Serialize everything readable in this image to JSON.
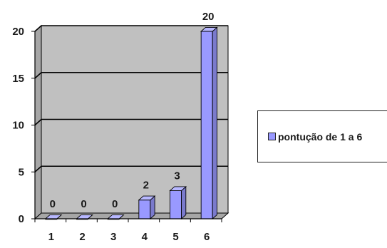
{
  "chart_data": {
    "type": "bar",
    "categories": [
      "1",
      "2",
      "3",
      "4",
      "5",
      "6"
    ],
    "series": [
      {
        "name": "pontução de 1 a 6",
        "values": [
          0,
          0,
          0,
          2,
          3,
          20
        ]
      }
    ],
    "data_labels": [
      "0",
      "0",
      "0",
      "2",
      "3",
      "20"
    ],
    "ylim": [
      0,
      20
    ],
    "yticks": [
      0,
      5,
      10,
      15,
      20
    ],
    "grid": true,
    "legend_position": "right",
    "three_d": true,
    "colors": {
      "bar_front": "#9999ff",
      "bar_side": "#7a7acc",
      "bar_top": "#b8b8ff",
      "wall": "#c0c0c0",
      "floor": "#a6a6a6",
      "gridline": "#000000"
    }
  },
  "legend": {
    "label": "pontução de 1 a 6"
  }
}
